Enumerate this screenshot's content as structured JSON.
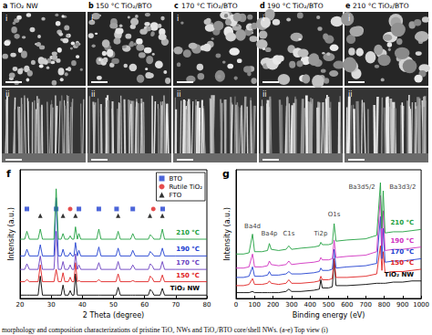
{
  "sem_panels": [
    {
      "label": "a",
      "title": "TiO₂ NW",
      "views": [
        "i",
        "ii"
      ]
    },
    {
      "label": "b",
      "title": "150 °C TiO₂/BTO",
      "views": [
        "i",
        "ii"
      ]
    },
    {
      "label": "c",
      "title": "170 °C TiO₂/BTO",
      "views": [
        "i",
        "ii"
      ]
    },
    {
      "label": "d",
      "title": "190 °C TiO₂/BTO",
      "views": [
        "i",
        "ii"
      ]
    },
    {
      "label": "e",
      "title": "210 °C TiO₂/BTO",
      "views": [
        "i",
        "ii"
      ]
    }
  ],
  "chart_data": [
    {
      "type": "line",
      "title": "f",
      "x_label": "2 Theta (degree)",
      "y_label": "Intensity (a.u.)",
      "x": [
        20,
        21.5,
        22.2,
        23,
        25.8,
        26.5,
        27.2,
        30.9,
        31.6,
        32.3,
        33.2,
        33.8,
        34.4,
        35.5,
        36.1,
        36.7,
        37.3,
        37.8,
        38.4,
        38.9,
        39.5,
        44.6,
        45.3,
        46,
        50.8,
        51.5,
        52.2,
        55.5,
        56.2,
        57,
        61.2,
        61.8,
        62.5,
        63,
        65,
        65.7,
        66.4,
        70,
        75,
        80
      ],
      "xlim": [
        20,
        80
      ],
      "xticks": [
        20,
        30,
        40,
        50,
        60,
        70,
        80
      ],
      "ylim": [
        0,
        115
      ],
      "tick_labels": "x",
      "legend": "upper right",
      "series": [
        {
          "name": "TiO₂ NW",
          "color": "#000000",
          "values": [
            3,
            3,
            3,
            3,
            3,
            20,
            3,
            3,
            3,
            3,
            3,
            12,
            3,
            3,
            7,
            3,
            3,
            22,
            3,
            3,
            3,
            3,
            3,
            3,
            3,
            10,
            3,
            3,
            3,
            3,
            3,
            8,
            6,
            3,
            3,
            9,
            3,
            3,
            3,
            3
          ]
        },
        {
          "name": "150 °C",
          "color": "#e02020",
          "values": [
            15,
            15,
            17,
            15,
            15,
            30,
            15,
            15,
            26,
            15,
            15,
            23,
            15,
            15,
            19,
            15,
            15,
            32,
            15,
            16,
            15,
            15,
            17,
            15,
            15,
            22,
            15,
            15,
            16,
            15,
            15,
            20,
            18,
            15,
            15,
            21,
            15,
            15,
            15,
            15
          ]
        },
        {
          "name": "170 °C",
          "color": "#6a3fbf",
          "values": [
            26,
            26,
            31,
            26,
            26,
            38,
            26,
            26,
            60,
            26,
            26,
            33,
            26,
            26,
            30,
            26,
            26,
            40,
            26,
            30,
            26,
            26,
            32,
            26,
            26,
            33,
            26,
            26,
            30,
            26,
            26,
            31,
            29,
            26,
            26,
            33,
            26,
            26,
            26,
            26
          ]
        },
        {
          "name": "190 °C",
          "color": "#2040d0",
          "values": [
            38,
            38,
            44,
            38,
            38,
            48,
            38,
            38,
            90,
            38,
            38,
            44,
            38,
            38,
            41,
            38,
            38,
            50,
            38,
            43,
            38,
            38,
            46,
            38,
            38,
            45,
            38,
            38,
            43,
            38,
            38,
            42,
            40,
            38,
            38,
            45,
            38,
            38,
            38,
            38
          ]
        },
        {
          "name": "210 °C",
          "color": "#20a040",
          "values": [
            53,
            53,
            60,
            53,
            53,
            62,
            53,
            53,
            98,
            53,
            53,
            58,
            53,
            53,
            56,
            53,
            53,
            64,
            53,
            58,
            53,
            53,
            62,
            53,
            53,
            60,
            53,
            53,
            58,
            53,
            53,
            57,
            55,
            53,
            53,
            62,
            53,
            53,
            53,
            53
          ]
        }
      ],
      "markers": [
        {
          "name": "BTO",
          "type": "scatter",
          "marker": "square",
          "color": "#1f3fd0",
          "x": [
            22.2,
            31.6,
            38.9,
            45.3,
            51,
            56.2,
            65.8
          ],
          "values": [
            80,
            80,
            80,
            80,
            80,
            80,
            80
          ]
        },
        {
          "name": "Rutile TiO₂",
          "type": "scatter",
          "marker": "circle",
          "color": "#e02020",
          "x": [
            36.1,
            62.8
          ],
          "values": [
            80,
            80
          ]
        },
        {
          "name": "FTO",
          "type": "scatter",
          "marker": "triangle",
          "color": "#000000",
          "x": [
            26.5,
            33.8,
            37.8,
            51.5,
            61.7,
            65.7
          ],
          "values": [
            74,
            74,
            74,
            74,
            74,
            74
          ]
        }
      ]
    },
    {
      "type": "line",
      "title": "g",
      "x_label": "Binding energy (eV)",
      "y_label": "Intensity (a.u.)",
      "x": [
        0,
        20,
        40,
        70,
        89,
        100,
        140,
        170,
        180,
        190,
        230,
        270,
        285,
        300,
        350,
        420,
        450,
        458,
        466,
        500,
        520,
        530,
        540,
        600,
        700,
        760,
        780,
        788,
        795,
        805,
        850,
        900,
        950,
        1000
      ],
      "xlim": [
        0,
        1000
      ],
      "xticks": [
        0,
        100,
        200,
        300,
        400,
        500,
        600,
        700,
        800,
        900,
        1000
      ],
      "ylim": [
        0,
        110
      ],
      "tick_labels": "x",
      "series": [
        {
          "name": "TiO₂ NW",
          "color": "#000000",
          "values": [
            5,
            5,
            5,
            5,
            6,
            5,
            5,
            5,
            5,
            5,
            5,
            6,
            8,
            6,
            6,
            7,
            8,
            16,
            9,
            9,
            10,
            32,
            11,
            11,
            12,
            13,
            13,
            13,
            13,
            13,
            14,
            14,
            15,
            15
          ]
        },
        {
          "name": "150 °C",
          "color": "#e02020",
          "values": [
            11,
            11,
            11,
            12,
            17,
            12,
            12,
            13,
            15,
            13,
            12,
            13,
            16,
            13,
            13,
            14,
            15,
            19,
            16,
            16,
            17,
            34,
            18,
            18,
            19,
            21,
            45,
            24,
            40,
            22,
            23,
            23,
            24,
            25
          ]
        },
        {
          "name": "170 °C",
          "color": "#2040d0",
          "values": [
            18,
            18,
            18,
            19,
            27,
            19,
            19,
            20,
            23,
            20,
            20,
            21,
            23,
            21,
            21,
            22,
            23,
            26,
            24,
            24,
            25,
            42,
            26,
            27,
            28,
            30,
            70,
            34,
            60,
            31,
            32,
            32,
            33,
            34
          ]
        },
        {
          "name": "190 °C",
          "color": "#d030c0",
          "values": [
            26,
            26,
            26,
            27,
            38,
            27,
            27,
            28,
            32,
            29,
            28,
            29,
            32,
            29,
            30,
            31,
            32,
            35,
            33,
            33,
            34,
            50,
            35,
            36,
            37,
            40,
            88,
            45,
            75,
            41,
            42,
            42,
            43,
            44
          ]
        },
        {
          "name": "210 °C",
          "color": "#20a040",
          "values": [
            38,
            38,
            38,
            39,
            55,
            40,
            40,
            41,
            47,
            42,
            41,
            42,
            45,
            42,
            43,
            44,
            45,
            48,
            46,
            46,
            47,
            64,
            49,
            50,
            51,
            54,
            99,
            60,
            92,
            56,
            57,
            57,
            58,
            59
          ]
        }
      ],
      "annotations": [
        {
          "text": "Ba4d",
          "x": 89,
          "y": 58
        },
        {
          "text": "Ba4p",
          "x": 180,
          "y": 52
        },
        {
          "text": "C1s",
          "x": 285,
          "y": 52
        },
        {
          "text": "Ti2p",
          "x": 458,
          "y": 52
        },
        {
          "text": "O1s",
          "x": 530,
          "y": 68
        },
        {
          "text": "Ba3d5/2",
          "x": 680,
          "y": 92
        },
        {
          "text": "Ba3d3/2",
          "x": 900,
          "y": 92
        }
      ]
    }
  ],
  "caption": "morphology and composition characterizations of pristine TiO₂ NWs and TiO₂/BTO core/shell NWs. (a-e) Top view (i)"
}
